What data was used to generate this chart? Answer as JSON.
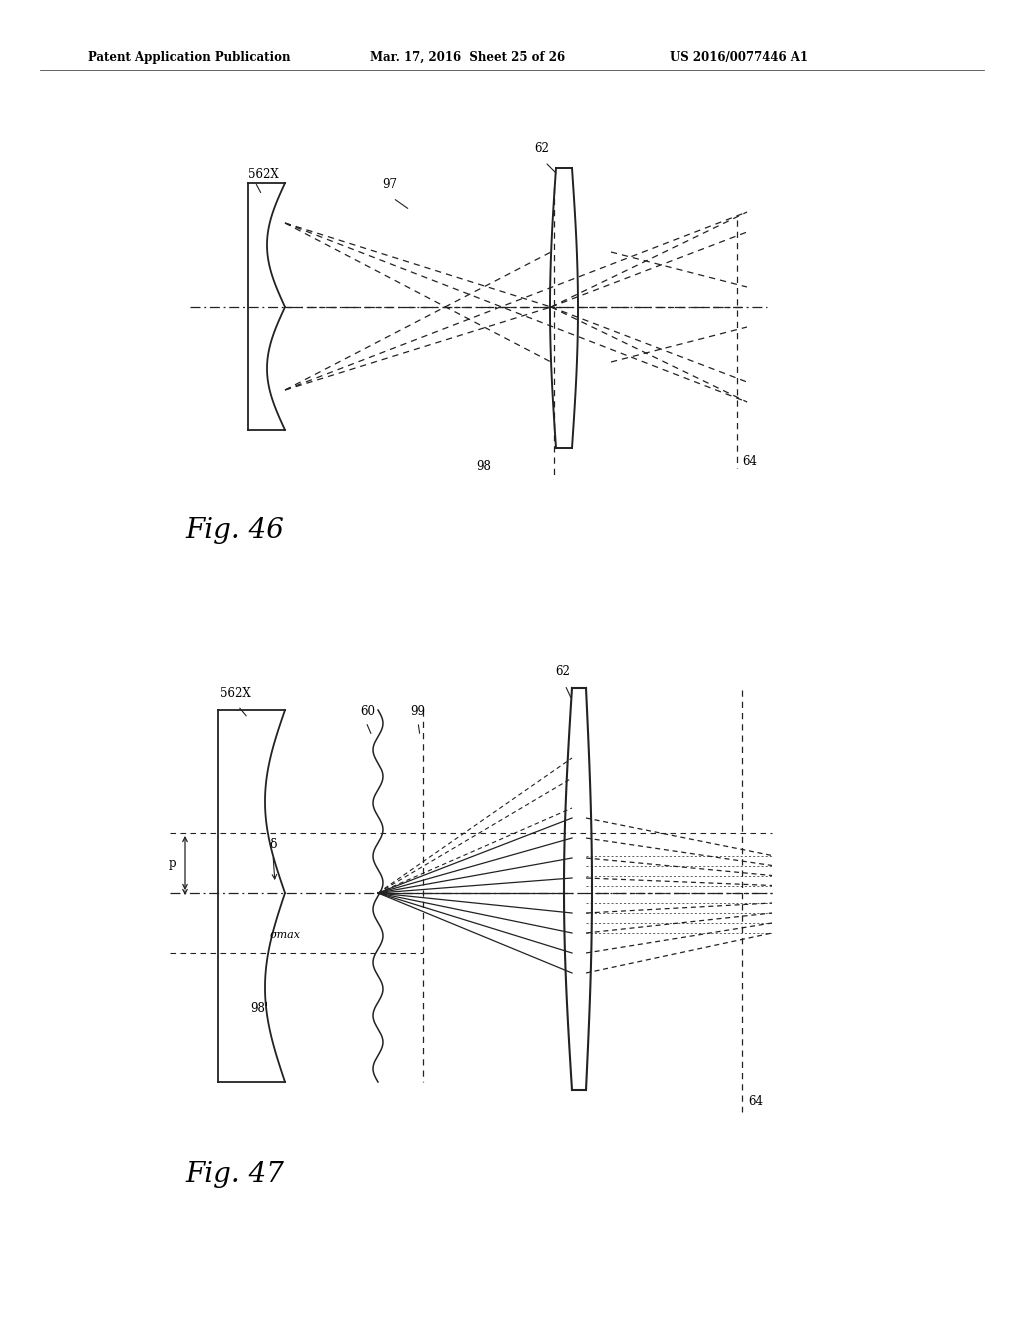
{
  "bg_color": "#ffffff",
  "header_text": "Patent Application Publication",
  "header_date": "Mar. 17, 2016  Sheet 25 of 26",
  "header_patent": "US 2016/0077446 A1",
  "fig46_label": "Fig. 46",
  "fig47_label": "Fig. 47",
  "label_562X_1": "562X",
  "label_97": "97",
  "label_62_1": "62",
  "label_98": "98",
  "label_64_1": "64",
  "label_562X_2": "562X",
  "label_60": "60",
  "label_99": "99",
  "label_62_2": "62",
  "label_64_2": "64",
  "label_98p": "98'",
  "label_p": "p",
  "label_delta": "δ",
  "label_sigma_max": "σmax"
}
